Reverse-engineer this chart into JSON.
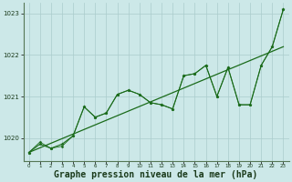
{
  "bg_color": "#cce8e8",
  "grid_color": "#aacccc",
  "line_color": "#1a6b1a",
  "xlabel": "Graphe pression niveau de la mer (hPa)",
  "ylim": [
    1019.45,
    1023.25
  ],
  "xlim": [
    -0.5,
    23.5
  ],
  "yticks": [
    1020,
    1021,
    1022,
    1023
  ],
  "xticks": [
    0,
    1,
    2,
    3,
    4,
    5,
    6,
    7,
    8,
    9,
    10,
    11,
    12,
    13,
    14,
    15,
    16,
    17,
    18,
    19,
    20,
    21,
    22,
    23
  ],
  "trend_x": [
    0,
    23
  ],
  "trend_y": [
    1019.65,
    1022.2
  ],
  "line1_x": [
    0,
    1,
    2,
    3,
    4,
    5,
    6,
    7,
    8,
    9,
    10,
    11,
    12,
    13,
    14,
    15,
    16,
    17,
    18,
    19,
    20,
    21,
    22,
    23
  ],
  "line1_y": [
    1019.65,
    1019.85,
    1019.75,
    1019.85,
    1020.05,
    1020.75,
    1020.5,
    1020.6,
    1021.05,
    1021.15,
    1021.05,
    1020.85,
    1020.8,
    1020.7,
    1021.5,
    1021.55,
    1021.75,
    1021.0,
    1021.7,
    1020.8,
    1020.8,
    1021.75,
    1022.2,
    1023.1
  ],
  "line2_x": [
    0,
    1,
    2,
    3,
    4,
    5,
    6,
    7,
    8,
    9,
    10,
    11,
    12,
    13,
    14,
    15,
    16,
    17,
    18,
    19,
    20,
    21,
    22,
    23
  ],
  "line2_y": [
    1019.65,
    1019.9,
    1019.75,
    1019.8,
    1020.05,
    1020.75,
    1020.5,
    1020.6,
    1021.05,
    1021.15,
    1021.05,
    1020.85,
    1020.8,
    1020.7,
    1021.5,
    1021.55,
    1021.75,
    1021.0,
    1021.7,
    1020.8,
    1020.8,
    1021.75,
    1022.2,
    1023.1
  ]
}
